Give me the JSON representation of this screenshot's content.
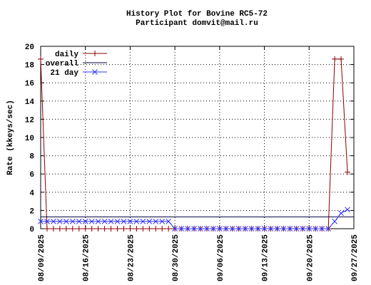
{
  "chart_data": {
    "type": "line",
    "title": "History Plot for Bovine RC5-72",
    "subtitle": "Participant domvit@mail.ru",
    "y_label": "Rate (kkeys/sec)",
    "x": [
      "08/09/2025",
      "08/10/2025",
      "08/11/2025",
      "08/12/2025",
      "08/13/2025",
      "08/14/2025",
      "08/15/2025",
      "08/16/2025",
      "08/17/2025",
      "08/18/2025",
      "08/19/2025",
      "08/20/2025",
      "08/21/2025",
      "08/22/2025",
      "08/23/2025",
      "08/24/2025",
      "08/25/2025",
      "08/26/2025",
      "08/27/2025",
      "08/28/2025",
      "08/29/2025",
      "08/30/2025",
      "08/31/2025",
      "09/01/2025",
      "09/02/2025",
      "09/03/2025",
      "09/04/2025",
      "09/05/2025",
      "09/06/2025",
      "09/07/2025",
      "09/08/2025",
      "09/09/2025",
      "09/10/2025",
      "09/11/2025",
      "09/12/2025",
      "09/13/2025",
      "09/14/2025",
      "09/15/2025",
      "09/16/2025",
      "09/17/2025",
      "09/18/2025",
      "09/19/2025",
      "09/20/2025",
      "09/21/2025",
      "09/22/2025",
      "09/23/2025",
      "09/24/2025",
      "09/25/2025",
      "09/26/2025"
    ],
    "series": [
      {
        "name": "daily",
        "color": "#8b0000",
        "marker": "plus",
        "values": [
          18.6,
          0,
          0,
          0,
          0,
          0,
          0,
          0,
          0,
          0,
          0,
          0,
          0,
          0,
          0,
          0,
          0,
          0,
          0,
          0,
          0,
          0,
          0,
          0,
          0,
          0,
          0,
          0,
          0,
          0,
          0,
          0,
          0,
          0,
          0,
          0,
          0,
          0,
          0,
          0,
          0,
          0,
          0,
          0,
          0,
          0,
          18.6,
          18.6,
          6.2
        ]
      },
      {
        "name": "overall",
        "color": "#000040",
        "value": 1.3
      },
      {
        "name": "21 day",
        "color": "#3333ff",
        "marker": "cross",
        "values": [
          0.8,
          0.8,
          0.8,
          0.8,
          0.8,
          0.8,
          0.8,
          0.8,
          0.8,
          0.8,
          0.8,
          0.8,
          0.8,
          0.8,
          0.8,
          0.8,
          0.8,
          0.8,
          0.8,
          0.8,
          0.8,
          0,
          0,
          0,
          0,
          0,
          0,
          0,
          0,
          0,
          0,
          0,
          0,
          0,
          0,
          0,
          0,
          0,
          0,
          0,
          0,
          0,
          0,
          0,
          0,
          0,
          0.8,
          1.7,
          2.1
        ]
      }
    ],
    "xlim": [
      "08/09/2025",
      "09/27/2025"
    ],
    "xticks": [
      "08/09/2025",
      "08/16/2025",
      "08/23/2025",
      "08/30/2025",
      "09/06/2025",
      "09/13/2025",
      "09/20/2025",
      "09/27/2025"
    ],
    "ylim": [
      0,
      20
    ],
    "yticks": [
      0,
      2,
      4,
      6,
      8,
      10,
      12,
      14,
      16,
      18,
      20
    ],
    "grid": true,
    "legend": "top-left"
  }
}
